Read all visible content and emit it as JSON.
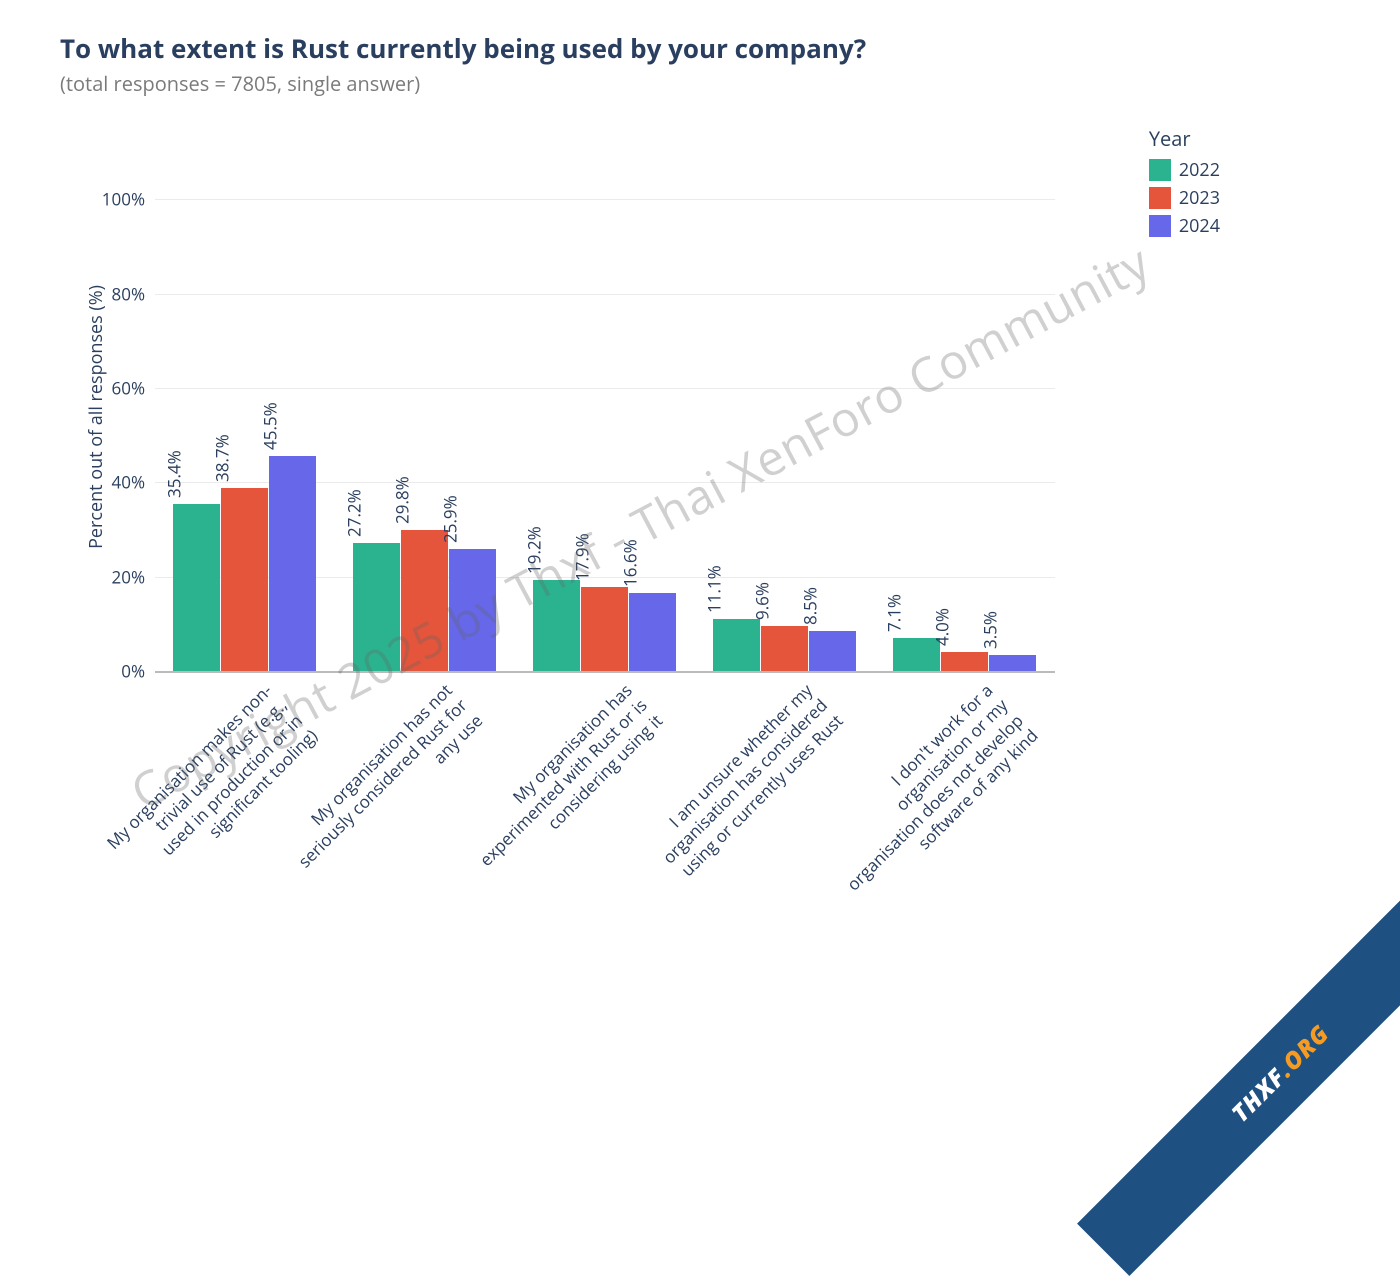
{
  "title": "To what extent is Rust currently being used by your company?",
  "subtitle": "(total responses = 7805, single answer)",
  "y_axis_title": "Percent out of all responses (%)",
  "legend_title": "Year",
  "chart": {
    "type": "grouped-bar",
    "y_min": 0,
    "y_max": 106,
    "y_ticks": [
      0,
      20,
      40,
      60,
      80,
      100
    ],
    "y_tick_labels": [
      "0%",
      "20%",
      "40%",
      "60%",
      "80%",
      "100%"
    ],
    "grid_color": "#ebebeb",
    "zero_line_color": "#bbbbbb",
    "background": "#ffffff",
    "bar_gap": 0.02,
    "group_width": 0.8,
    "title_color": "#2a3f5f",
    "axis_text_color": "#2a3f5f",
    "title_fontsize": 26,
    "subtitle_fontsize": 20,
    "axis_label_fontsize": 18,
    "tick_fontsize": 17
  },
  "series": [
    {
      "name": "2022",
      "color": "#2bb38f"
    },
    {
      "name": "2023",
      "color": "#e4553b"
    },
    {
      "name": "2024",
      "color": "#6667e9"
    }
  ],
  "categories": [
    {
      "label_lines": [
        "My organisation makes non-",
        "trivial use of Rust (e.g.,",
        "used in production or in",
        "significant tooling)"
      ],
      "values": [
        35.4,
        38.7,
        45.5
      ],
      "value_labels": [
        "35.4%",
        "38.7%",
        "45.5%"
      ]
    },
    {
      "label_lines": [
        "My organisation has not",
        "seriously considered Rust for",
        "any use"
      ],
      "values": [
        27.2,
        29.8,
        25.9
      ],
      "value_labels": [
        "27.2%",
        "29.8%",
        "25.9%"
      ]
    },
    {
      "label_lines": [
        "My organisation has",
        "experimented with Rust or is",
        "considering using it"
      ],
      "values": [
        19.2,
        17.9,
        16.6
      ],
      "value_labels": [
        "19.2%",
        "17.9%",
        "16.6%"
      ]
    },
    {
      "label_lines": [
        "I am unsure whether my",
        "organisation has considered",
        "using or currently uses Rust"
      ],
      "values": [
        11.1,
        9.6,
        8.5
      ],
      "value_labels": [
        "11.1%",
        "9.6%",
        "8.5%"
      ]
    },
    {
      "label_lines": [
        "I don't work for a",
        "organisation or my",
        "organisation does not develop",
        "software of any kind"
      ],
      "values": [
        7.1,
        4.0,
        3.5
      ],
      "value_labels": [
        "7.1%",
        "4.0%",
        "3.5%"
      ]
    }
  ],
  "watermark": "Copyright 2025 by Thxf - Thai XenForo Community",
  "ribbon": {
    "part1": "THXF",
    "part2": ".ORG",
    "bg": "#1e5082",
    "color1": "#ffffff",
    "color2": "#f59b23"
  }
}
